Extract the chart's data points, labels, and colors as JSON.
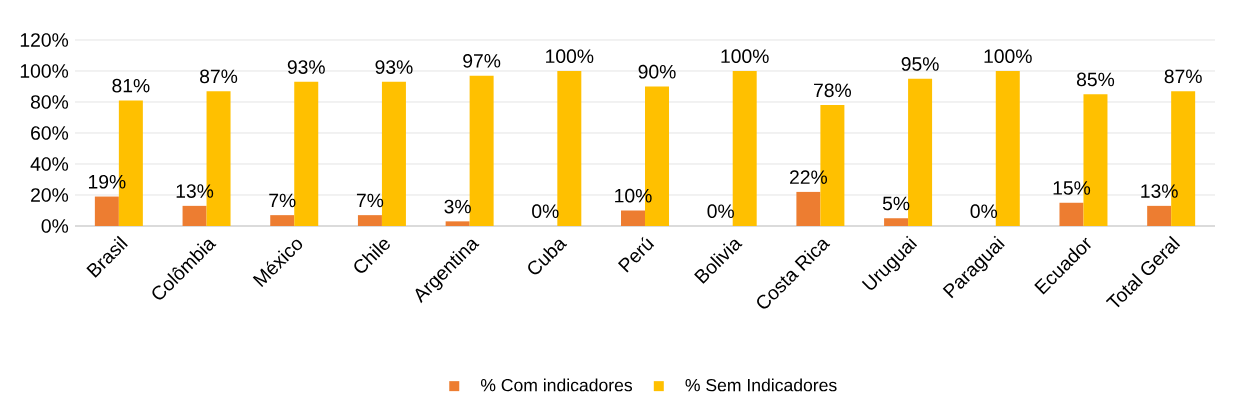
{
  "chart_data": {
    "type": "bar",
    "categories": [
      "Brasil",
      "Colômbia",
      "México",
      "Chile",
      "Argentina",
      "Cuba",
      "Perú",
      "Bolivia",
      "Costa Rica",
      "Uruguai",
      "Paraguai",
      "Ecuador",
      "Total Geral"
    ],
    "series": [
      {
        "name": "% Com indicadores",
        "color": "#ed7d31",
        "values": [
          19,
          13,
          7,
          7,
          3,
          0,
          10,
          0,
          22,
          5,
          0,
          15,
          13
        ],
        "value_labels": [
          "19%",
          "13%",
          "7%",
          "7%",
          "3%",
          "0%",
          "10%",
          "0%",
          "22%",
          "5%",
          "0%",
          "15%",
          "13%"
        ]
      },
      {
        "name": "% Sem Indicadores",
        "color": "#ffc000",
        "values": [
          81,
          87,
          93,
          93,
          97,
          100,
          90,
          100,
          78,
          95,
          100,
          85,
          87
        ],
        "value_labels": [
          "81%",
          "87%",
          "93%",
          "93%",
          "97%",
          "100%",
          "90%",
          "100%",
          "78%",
          "95%",
          "100%",
          "85%",
          "87%"
        ]
      }
    ],
    "ylim": [
      0,
      120
    ],
    "yticks": [
      {
        "value": 0,
        "label": "0%"
      },
      {
        "value": 20,
        "label": "20%"
      },
      {
        "value": 40,
        "label": "40%"
      },
      {
        "value": 60,
        "label": "60%"
      },
      {
        "value": 80,
        "label": "80%"
      },
      {
        "value": 100,
        "label": "100%"
      },
      {
        "value": 120,
        "label": "120%"
      }
    ],
    "grid": "y",
    "legend": "bottom"
  }
}
